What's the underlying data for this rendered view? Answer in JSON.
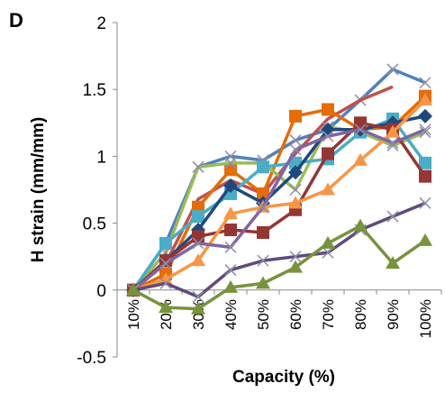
{
  "chart_data": {
    "type": "line",
    "panel_label": "D",
    "xlabel": "Capacity (%)",
    "ylabel": "H strain (mm/mm)",
    "x": [
      "10%",
      "20%",
      "30%",
      "40%",
      "50%",
      "60%",
      "70%",
      "80%",
      "90%",
      "100%"
    ],
    "ylim": [
      -0.5,
      2
    ],
    "yticks": [
      -0.5,
      0,
      0.5,
      1,
      1.5,
      2
    ],
    "ytick_labels": [
      "-0.5",
      "0",
      "0.5",
      "1",
      "1.5",
      "2"
    ],
    "grid": false,
    "series": [
      {
        "color": "#4f81bd",
        "marker": "x",
        "values": [
          0,
          0.35,
          0.92,
          1.0,
          0.97,
          1.12,
          1.2,
          1.42,
          1.65,
          1.55
        ]
      },
      {
        "color": "#c0504d",
        "marker": "none",
        "values": [
          0,
          0.2,
          0.68,
          0.82,
          0.72,
          1.02,
          1.28,
          1.42,
          1.52,
          null
        ]
      },
      {
        "color": "#e46c0a",
        "marker": "square",
        "values": [
          0,
          0.12,
          0.62,
          0.9,
          0.72,
          1.3,
          1.35,
          1.2,
          1.22,
          1.45
        ]
      },
      {
        "color": "#9bbb59",
        "marker": "x",
        "values": [
          0,
          0.28,
          0.92,
          0.95,
          0.95,
          0.75,
          1.22,
          1.18,
          1.08,
          1.18
        ]
      },
      {
        "color": "#4bacc6",
        "marker": "square",
        "values": [
          0,
          0.35,
          0.55,
          0.72,
          0.92,
          0.95,
          0.98,
          1.18,
          1.28,
          0.95
        ]
      },
      {
        "color": "#1f497d",
        "marker": "diamond",
        "values": [
          0,
          0.22,
          0.45,
          0.78,
          0.65,
          0.88,
          1.2,
          1.2,
          1.25,
          1.3
        ]
      },
      {
        "color": "#943634",
        "marker": "square",
        "values": [
          0,
          0.22,
          0.4,
          0.45,
          0.43,
          0.6,
          1.02,
          1.25,
          1.2,
          0.85
        ]
      },
      {
        "color": "#f79646",
        "marker": "triangle",
        "values": [
          0,
          0.08,
          0.22,
          0.57,
          0.62,
          0.65,
          0.75,
          0.97,
          1.18,
          1.42
        ]
      },
      {
        "color": "#8064a2",
        "marker": "x",
        "values": [
          0,
          0.2,
          0.35,
          0.32,
          0.62,
          1.05,
          1.15,
          1.2,
          1.1,
          1.2
        ]
      },
      {
        "color": "#604a7b",
        "marker": "x",
        "values": [
          0,
          0.05,
          -0.05,
          0.15,
          0.22,
          0.25,
          0.28,
          0.45,
          0.55,
          0.65
        ]
      },
      {
        "color": "#77933c",
        "marker": "triangle",
        "values": [
          0,
          -0.13,
          -0.14,
          0.02,
          0.05,
          0.17,
          0.35,
          0.48,
          0.2,
          0.37
        ]
      }
    ]
  }
}
